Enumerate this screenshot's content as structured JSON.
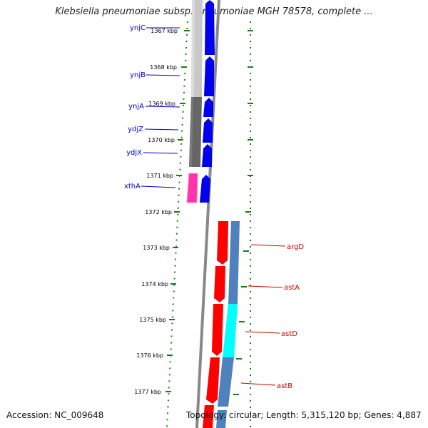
{
  "header": {
    "title": "Klebsiella pneumoniae subsp. pneumoniae MGH 78578, complete ..."
  },
  "footer": {
    "accession": "Accession: NC_009648",
    "summary": "Topology: circular; Length: 5,315,120 bp; Genes: 4,887"
  },
  "scale": {
    "ticks": [
      "1367 kbp",
      "1368 kbp",
      "1369 kbp",
      "1370 kbp",
      "1371 kbp",
      "1372 kbp",
      "1373 kbp",
      "1374 kbp",
      "1375 kbp",
      "1376 kbp",
      "1377 kbp"
    ]
  },
  "genes_left": [
    {
      "name": "ynjC"
    },
    {
      "name": "ynjB"
    },
    {
      "name": "ynjA"
    },
    {
      "name": "ydjZ"
    },
    {
      "name": "ydjX"
    },
    {
      "name": "xthA"
    }
  ],
  "genes_right": [
    {
      "name": "argD"
    },
    {
      "name": "astA"
    },
    {
      "name": "astD"
    },
    {
      "name": "astB"
    }
  ],
  "colors": {
    "label_blue": "#0000cc",
    "label_red": "#cc0000",
    "forward_cds": "#0000ee",
    "reverse_cds": "#ff0000",
    "reverse_cds_alt": "#4f81bd",
    "highlight_cyan": "#00ffff",
    "highlight_pink": "#ff33aa",
    "gc_dark": "#666666",
    "gc_light": "#c8c8c8",
    "backbone": "#888888",
    "ticks": "#1a7a1a"
  }
}
